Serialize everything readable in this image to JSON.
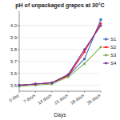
{
  "chart_data": {
    "type": "line",
    "title": "pH of unpackaged grapes at 30°C",
    "xlabel": "Days",
    "x": [
      0,
      7,
      14,
      21,
      28,
      35
    ],
    "xlim": [
      0,
      35
    ],
    "xticks": [
      {
        "value": 0,
        "label": "0 day"
      },
      {
        "value": 7,
        "label": "7 days"
      },
      {
        "value": 14,
        "label": "14 days"
      },
      {
        "value": 21,
        "label": "21 days"
      },
      {
        "value": 28,
        "label": "28 days"
      },
      {
        "value": 35,
        "label": "35 days"
      }
    ],
    "series": [
      {
        "name": "S1",
        "color": "#4472C4",
        "marker": "square",
        "values": [
          3.5,
          3.51,
          3.52,
          3.58,
          3.72,
          4.05
        ]
      },
      {
        "name": "S2",
        "color": "#FF0000",
        "marker": "triangle",
        "values": [
          3.5,
          3.51,
          3.52,
          3.58,
          3.78,
          4.02
        ]
      },
      {
        "name": "S3",
        "color": "#70AD47",
        "marker": "circle",
        "values": [
          3.49,
          3.5,
          3.51,
          3.57,
          3.68,
          3.82
        ]
      },
      {
        "name": "S4",
        "color": "#7030A0",
        "marker": "diamond",
        "values": [
          3.5,
          3.51,
          3.52,
          3.59,
          3.8,
          4.0
        ]
      }
    ],
    "ylim": [
      3.45,
      4.12
    ],
    "yticks": [
      3.5,
      3.6,
      3.7,
      3.8,
      3.9,
      {
        "value": 4.0,
        "label": "4.0"
      },
      3.9999999999999
    ],
    "grid": true,
    "legend": "right"
  }
}
